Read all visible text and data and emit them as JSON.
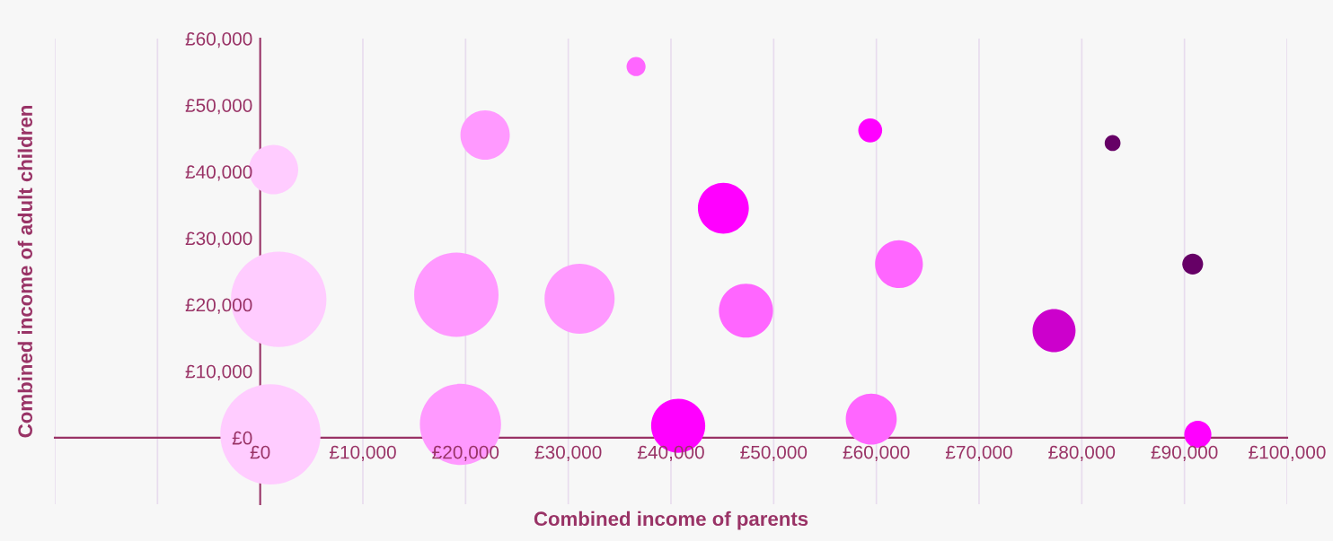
{
  "chart_data": {
    "type": "bubble",
    "xlabel": "Combined income of parents",
    "ylabel": "Combined income of adult children",
    "x": [
      36600,
      21900,
      59400,
      83000,
      1300,
      45100,
      62200,
      90800,
      1800,
      19100,
      31100,
      47300,
      77300,
      1000,
      19500,
      40700,
      59500,
      91300
    ],
    "values": [
      55800,
      45500,
      46200,
      44300,
      40300,
      34500,
      26100,
      26100,
      20800,
      21500,
      20900,
      19100,
      16100,
      500,
      2000,
      1800,
      2800,
      500
    ],
    "sizes": [
      0.036,
      0.242,
      0.057,
      0.025,
      0.242,
      0.258,
      0.227,
      0.043,
      0.907,
      0.708,
      0.488,
      0.291,
      0.184,
      1,
      0.655,
      0.291,
      0.258,
      0.073
    ],
    "colors": [
      "#ff66ff",
      "#ff99ff",
      "#ff00ff",
      "#660066",
      "#ffccff",
      "#ff00ff",
      "#ff66ff",
      "#660066",
      "#ffccff",
      "#ff99ff",
      "#ff99ff",
      "#ff66ff",
      "#cc00cc",
      "#ffccff",
      "#ff99ff",
      "#ff00ff",
      "#ff66ff",
      "#ff00ff"
    ],
    "xlim": [
      -20000,
      100000
    ],
    "ylim": [
      -10000,
      60000
    ],
    "xticks": [
      {
        "value": -20000,
        "label": null
      },
      {
        "value": -10000,
        "label": null
      },
      {
        "value": 0,
        "label": "£0"
      },
      {
        "value": 10000,
        "label": "£10,000"
      },
      {
        "value": 20000,
        "label": "£20,000"
      },
      {
        "value": 30000,
        "label": "£30,000"
      },
      {
        "value": 40000,
        "label": "£40,000"
      },
      {
        "value": 50000,
        "label": "£50,000"
      },
      {
        "value": 60000,
        "label": "£60,000"
      },
      {
        "value": 70000,
        "label": "£70,000"
      },
      {
        "value": 80000,
        "label": "£80,000"
      },
      {
        "value": 90000,
        "label": "£90,000"
      },
      {
        "value": 100000,
        "label": "£100,000"
      }
    ],
    "yticks": [
      {
        "value": 0,
        "label": "£0"
      },
      {
        "value": 10000,
        "label": "£10,000"
      },
      {
        "value": 20000,
        "label": "£20,000"
      },
      {
        "value": 30000,
        "label": "£30,000"
      },
      {
        "value": 40000,
        "label": "£40,000"
      },
      {
        "value": 50000,
        "label": "£50,000"
      },
      {
        "value": 60000,
        "label": "£60,000"
      }
    ],
    "grid": "x"
  }
}
